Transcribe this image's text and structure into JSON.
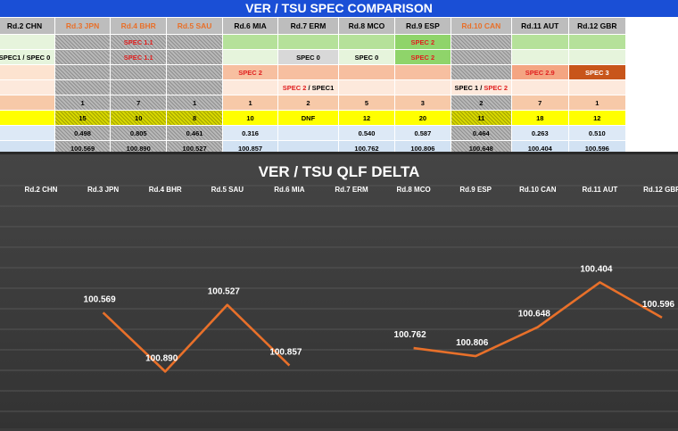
{
  "sheet": {
    "title": "VER / TSU SPEC COMPARISON",
    "rounds": [
      {
        "label": "Rd.2 CHN",
        "warn": false
      },
      {
        "label": "Rd.3 JPN",
        "warn": true
      },
      {
        "label": "Rd.4 BHR",
        "warn": true
      },
      {
        "label": "Rd.5 SAU",
        "warn": true
      },
      {
        "label": "Rd.6 MIA",
        "warn": false
      },
      {
        "label": "Rd.7 ERM",
        "warn": false
      },
      {
        "label": "Rd.8 MCO",
        "warn": false
      },
      {
        "label": "Rd.9 ESP",
        "warn": false
      },
      {
        "label": "Rd.10 CAN",
        "warn": true
      },
      {
        "label": "Rd.11 AUT",
        "warn": false
      },
      {
        "label": "Rd.12 GBR",
        "warn": false
      }
    ],
    "rows": [
      {
        "bg": "#e6f4dc",
        "cells": [
          {
            "t": ""
          },
          {
            "t": "",
            "hatch": true
          },
          {
            "t": "SPEC 1.1",
            "c": "red",
            "hatch": true
          },
          {
            "t": "",
            "hatch": true
          },
          {
            "t": "",
            "bg": "#b5e19a"
          },
          {
            "t": "",
            "bg": "#b5e19a"
          },
          {
            "t": "",
            "bg": "#b5e19a"
          },
          {
            "t": "SPEC 2",
            "c": "red",
            "bg": "#8fd46a"
          },
          {
            "t": "",
            "hatch": true
          },
          {
            "t": "",
            "bg": "#b5e19a"
          },
          {
            "t": "",
            "bg": "#b5e19a"
          }
        ]
      },
      {
        "bg": "#e6f4dc",
        "cells": [
          {
            "t": "SPEC1 / SPEC 0"
          },
          {
            "t": "",
            "hatch": true
          },
          {
            "t": "SPEC 1.1",
            "c": "red",
            "hatch": true
          },
          {
            "t": "",
            "hatch": true
          },
          {
            "t": "",
            "bg": "#e6f4dc"
          },
          {
            "t": "SPEC 0",
            "bg": "#d8d8d8"
          },
          {
            "t": "SPEC 0",
            "bg": "#e6f4dc"
          },
          {
            "t": "SPEC 2",
            "c": "red",
            "bg": "#8fd46a"
          },
          {
            "t": "",
            "hatch": true
          },
          {
            "t": "",
            "bg": "#e6f4dc"
          },
          {
            "t": "",
            "bg": "#e6f4dc"
          }
        ]
      },
      {
        "bg": "#fde3d0",
        "cells": [
          {
            "t": ""
          },
          {
            "t": "",
            "hatch": true
          },
          {
            "t": "",
            "hatch": true
          },
          {
            "t": "",
            "hatch": true
          },
          {
            "t": "SPEC 2",
            "c": "red",
            "bg": "#f7bfa0"
          },
          {
            "t": "",
            "bg": "#f7bfa0"
          },
          {
            "t": "",
            "bg": "#f7bfa0"
          },
          {
            "t": "",
            "bg": "#f7bfa0"
          },
          {
            "t": "",
            "hatch": true
          },
          {
            "t": "SPEC 2.9",
            "c": "red",
            "bg": "#f4a582"
          },
          {
            "t": "SPEC 3",
            "c": "#ffffff",
            "bg": "#c8551a"
          }
        ]
      },
      {
        "bg": "#fde9dc",
        "cells": [
          {
            "t": ""
          },
          {
            "t": "",
            "hatch": true
          },
          {
            "t": "",
            "hatch": true
          },
          {
            "t": "",
            "hatch": true
          },
          {
            "t": "",
            "bg": "#fde9dc"
          },
          {
            "t": "SPEC 2 / SPEC1",
            "mixed": true
          },
          {
            "t": "",
            "bg": "#fde9dc"
          },
          {
            "t": "",
            "bg": "#fde9dc"
          },
          {
            "t": "SPEC 1 / SPEC 2",
            "mixed": true,
            "bg": "#fde9dc"
          },
          {
            "t": "",
            "bg": "#fde9dc"
          },
          {
            "t": "",
            "bg": "#fde9dc"
          }
        ]
      },
      {
        "bg": "#f7c9a8",
        "cells": [
          {
            "t": ""
          },
          {
            "t": "1",
            "hatch": true
          },
          {
            "t": "7",
            "hatch": true
          },
          {
            "t": "1",
            "hatch": true
          },
          {
            "t": "1"
          },
          {
            "t": "2"
          },
          {
            "t": "5"
          },
          {
            "t": "3"
          },
          {
            "t": "2",
            "hatch": true
          },
          {
            "t": "7"
          },
          {
            "t": "1"
          }
        ]
      },
      {
        "bg": "#ffff00",
        "cells": [
          {
            "t": ""
          },
          {
            "t": "15",
            "yhatch": true
          },
          {
            "t": "10",
            "yhatch": true
          },
          {
            "t": "8",
            "yhatch": true
          },
          {
            "t": "10"
          },
          {
            "t": "DNF"
          },
          {
            "t": "12"
          },
          {
            "t": "20"
          },
          {
            "t": "11",
            "yhatch": true
          },
          {
            "t": "18"
          },
          {
            "t": "12"
          }
        ]
      },
      {
        "bg": "#dde9f6",
        "cells": [
          {
            "t": ""
          },
          {
            "t": "0.498",
            "hatch": true
          },
          {
            "t": "0.805",
            "hatch": true
          },
          {
            "t": "0.461",
            "hatch": true
          },
          {
            "t": "0.316"
          },
          {
            "t": ""
          },
          {
            "t": "0.540"
          },
          {
            "t": "0.587"
          },
          {
            "t": "0.464",
            "hatch": true
          },
          {
            "t": "0.263"
          },
          {
            "t": "0.510"
          }
        ]
      },
      {
        "bg": "#d2e2f3",
        "cells": [
          {
            "t": ""
          },
          {
            "t": "100.569",
            "hatch": true
          },
          {
            "t": "100.890",
            "hatch": true
          },
          {
            "t": "100.527",
            "hatch": true
          },
          {
            "t": "100.857"
          },
          {
            "t": ""
          },
          {
            "t": "100.762"
          },
          {
            "t": "100.806"
          },
          {
            "t": "100.648",
            "hatch": true
          },
          {
            "t": "100.404"
          },
          {
            "t": "100.596"
          }
        ]
      }
    ]
  },
  "chart_data": {
    "type": "line",
    "title": "VER / TSU QLF DELTA",
    "categories": [
      "Rd.2 CHN",
      "Rd.3 JPN",
      "Rd.4 BHR",
      "Rd.5 SAU",
      "Rd.6 MIA",
      "Rd.7 ERM",
      "Rd.8 MCO",
      "Rd.9 ESP",
      "Rd.10 CAN",
      "Rd.11 AUT",
      "Rd.12 GBR"
    ],
    "values": [
      null,
      100.569,
      100.89,
      100.527,
      100.857,
      null,
      100.762,
      100.806,
      100.648,
      100.404,
      100.596
    ],
    "ylim": [
      100.3,
      101.0
    ],
    "reversed_y": true,
    "grid": true,
    "line_color": "#e8702a",
    "label_color": "#ffffff",
    "bg_color": "#3b3b3b"
  }
}
